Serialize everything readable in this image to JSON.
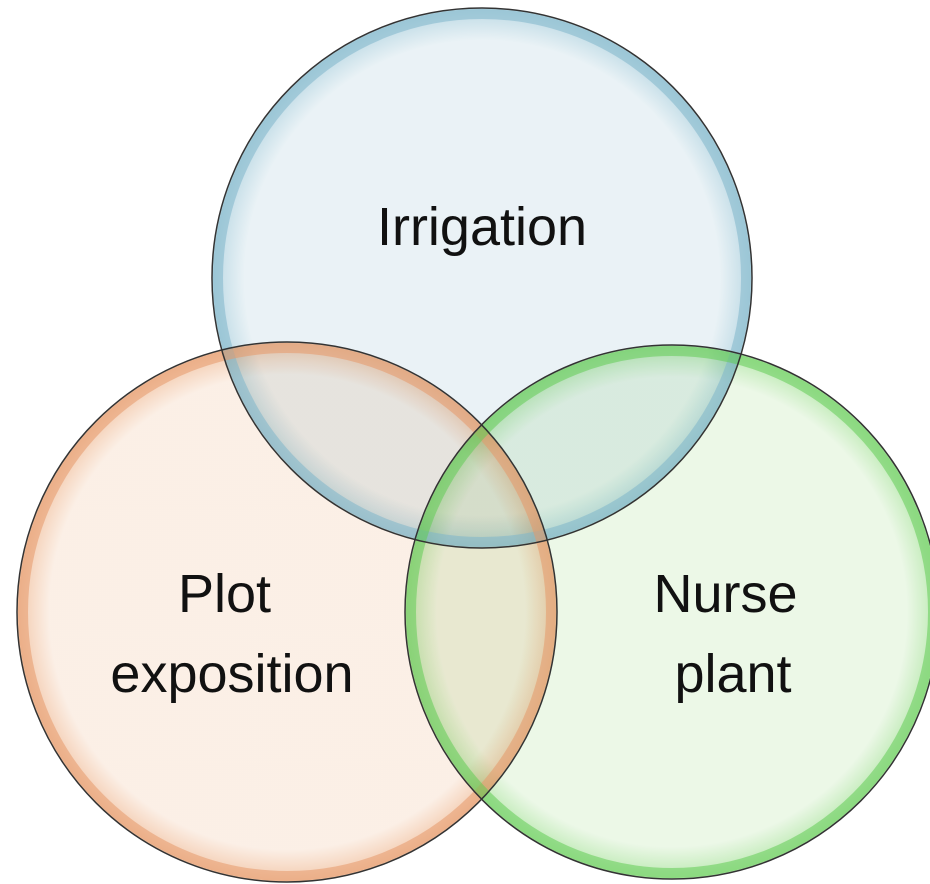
{
  "nodes": [
    {
      "label": [
        "Irrigation"
      ]
    },
    {
      "label": [
        "Plot",
        "exposition"
      ]
    },
    {
      "label": [
        "Nurse",
        "plant"
      ]
    }
  ]
}
